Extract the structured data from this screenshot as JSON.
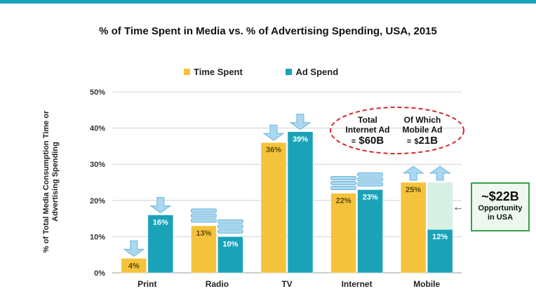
{
  "colors": {
    "time_spent": "#f5c33b",
    "ad_spend": "#1aa3b8",
    "oval": "#d9262e",
    "callout_border": "#3aa04a"
  },
  "chart_data": {
    "type": "bar",
    "title": "% of Time Spent in Media vs. % of Advertising Spending, USA, 2015",
    "ylabel": "% of Total Media Consumption Time or Advertising Spending",
    "categories": [
      "Print",
      "Radio",
      "TV",
      "Internet",
      "Mobile"
    ],
    "series": [
      {
        "name": "Time Spent",
        "values": [
          4,
          13,
          36,
          22,
          25
        ],
        "labels": [
          "4%",
          "13%",
          "36%",
          "22%",
          "25%"
        ]
      },
      {
        "name": "Ad Spend",
        "values": [
          16,
          10,
          39,
          23,
          12
        ],
        "labels": [
          "16%",
          "10%",
          "39%",
          "23%",
          "12%"
        ]
      }
    ],
    "ylim": [
      0,
      50
    ],
    "yticks": [
      0,
      10,
      20,
      30,
      40,
      50
    ],
    "ytick_labels": [
      "0%",
      "10%",
      "20%",
      "30%",
      "40%",
      "50%"
    ],
    "mobile_gap_to": 25,
    "annotations": {
      "time_spent": [
        "down",
        "flat",
        "down",
        "flat",
        "up"
      ],
      "ad_spend": [
        "down",
        "flat",
        "down",
        "flat",
        "up"
      ]
    },
    "grid": true,
    "legend": "top"
  },
  "oval": {
    "left_line1": "Total",
    "left_line2": "Internet Ad",
    "left_value_prefix": "=",
    "left_value": "$60B",
    "right_line1": "Of Which",
    "right_line2": "Mobile Ad",
    "right_value_prefix": "=",
    "right_value_sub": "$",
    "right_value": "21B"
  },
  "callout": {
    "amount": "~$22B",
    "line1": "Opportunity",
    "line2": "in USA"
  }
}
